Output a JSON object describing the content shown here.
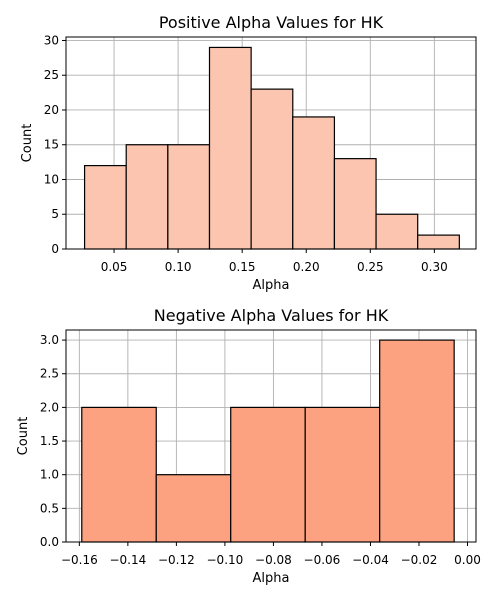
{
  "chart_data": [
    {
      "type": "bar",
      "title": "Positive Alpha Values for HK",
      "xlabel": "Alpha",
      "ylabel": "Count",
      "xlim": [
        0.0125,
        0.3325
      ],
      "ylim": [
        0,
        30.5
      ],
      "bin_edges": [
        0.027,
        0.0595,
        0.092,
        0.1245,
        0.157,
        0.1895,
        0.222,
        0.2545,
        0.287,
        0.3195
      ],
      "values": [
        12,
        15,
        15,
        29,
        23,
        19,
        13,
        5,
        2
      ],
      "xticks": [
        0.05,
        0.1,
        0.15,
        0.2,
        0.25,
        0.3
      ],
      "xtick_labels": [
        "0.05",
        "0.10",
        "0.15",
        "0.20",
        "0.25",
        "0.30"
      ],
      "yticks": [
        0,
        5,
        10,
        15,
        20,
        25,
        30
      ],
      "ytick_labels": [
        "0",
        "5",
        "10",
        "15",
        "20",
        "25",
        "30"
      ],
      "grid": true,
      "bar_color": "#fcc5b0"
    },
    {
      "type": "bar",
      "title": "Negative Alpha Values for HK",
      "xlabel": "Alpha",
      "ylabel": "Count",
      "xlim": [
        -0.1655,
        0.0035
      ],
      "ylim": [
        0,
        3.15
      ],
      "bin_edges": [
        -0.159,
        -0.1283,
        -0.0976,
        -0.0669,
        -0.0362,
        -0.0055
      ],
      "values": [
        2,
        1,
        2,
        2,
        3
      ],
      "xticks": [
        -0.16,
        -0.14,
        -0.12,
        -0.1,
        -0.08,
        -0.06,
        -0.04,
        -0.02,
        0.0
      ],
      "xtick_labels": [
        "−0.16",
        "−0.14",
        "−0.12",
        "−0.10",
        "−0.08",
        "−0.06",
        "−0.04",
        "−0.02",
        "0.00"
      ],
      "yticks": [
        0,
        0.5,
        1.0,
        1.5,
        2.0,
        2.5,
        3.0
      ],
      "ytick_labels": [
        "0.0",
        "0.5",
        "1.0",
        "1.5",
        "2.0",
        "2.5",
        "3.0"
      ],
      "grid": true,
      "bar_color": "#fca281"
    }
  ]
}
